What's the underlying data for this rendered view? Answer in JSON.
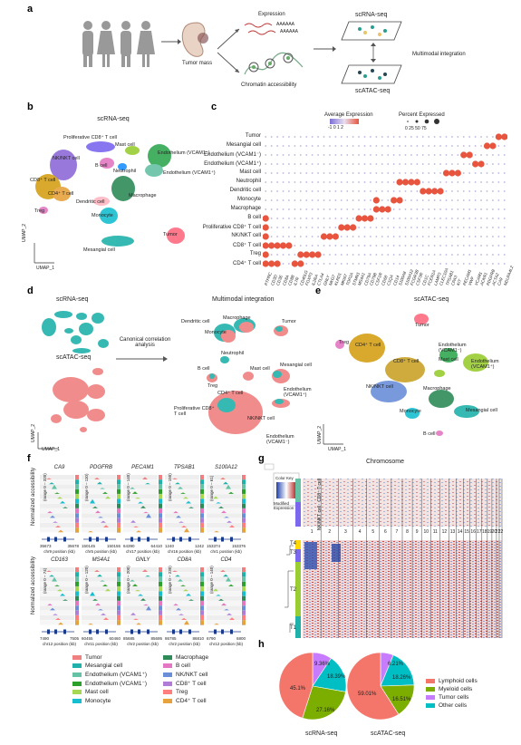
{
  "panels": {
    "a": "a",
    "b": "b",
    "c": "c",
    "d": "d",
    "e": "e",
    "f": "f",
    "g": "g",
    "h": "h"
  },
  "panel_a": {
    "expression": "Expression",
    "chromatin": "Chromatin accessibility",
    "tumor_mass": "Tumor mass",
    "scrna": "scRNA-seq",
    "scatac": "scATAC-seq",
    "integration": "Multimodal integration",
    "aaaa": "AAAAAA"
  },
  "panel_b": {
    "title": "scRNA-seq",
    "umap2": "UMAP_2",
    "umap1": "UMAP_1",
    "labels": {
      "prolif": "Proliferative CD8⁺ T cell",
      "mast": "Mast cell",
      "nk": "NK/NKT cell",
      "endo_minus": "Endothelium (VCAM1⁻)",
      "endo_plus": "Endothelium (VCAM1⁺)",
      "bcell": "B cell",
      "neutrophil": "Neutrophil",
      "cd8": "CD8⁺ T cell",
      "cd4": "CD4⁺ T cell",
      "macrophage": "Macrophage",
      "dendritic": "Dendritic cell",
      "treg": "Treg",
      "monocyte": "Monocyte",
      "tumor": "Tumor",
      "mesangial": "Mesangial cell"
    }
  },
  "panel_c": {
    "avg_title": "Average Expression",
    "avg_ticks": "-1 0 1 2",
    "pct_title": "Percent Expressed",
    "pct_ticks": "0  25 50 75",
    "rows": [
      "Tumor",
      "Mesangial cell",
      "Endothelium (VCAM1⁻)",
      "Endothelium (VCAM1⁺)",
      "Mast cell",
      "Neutrophil",
      "Dendritic cell",
      "Monocyte",
      "Macrophage",
      "B cell",
      "Proliferative CD8⁺ T cell",
      "NK/NKT cell",
      "CD8⁺ T cell",
      "Treg",
      "CD4⁺ T cell"
    ],
    "genes": [
      "PTPRC",
      "CD3D",
      "CD3E",
      "CD8A",
      "CD8B",
      "IL7R",
      "CD40LG",
      "FOXP3",
      "IL2RA",
      "CTLA4",
      "GNLY",
      "NKG7",
      "KLRD1",
      "MKI67",
      "TOP2A",
      "STMN1",
      "MS4A1",
      "CD79A",
      "CD79B",
      "CSF1R",
      "CD68",
      "C1QA",
      "CD14",
      "S100A8",
      "S100A12",
      "FCGR3B",
      "CSF3R",
      "CD1C",
      "FCER1A",
      "LAMP3",
      "CLEC10A",
      "TPSAB1",
      "CPA3",
      "KIT",
      "PECAM1",
      "VWF",
      "VCAM1",
      "ACKR1",
      "PDGFRB",
      "ACTA2",
      "CA9",
      "NDUFA4L2"
    ]
  },
  "panel_d": {
    "scrna": "scRNA-seq",
    "scatac": "scATAC-seq",
    "cca": "Canonical correlation\nanalysis",
    "title": "Multimodal integration",
    "umap2": "UMAP_2",
    "umap1": "UMAP_1",
    "labels": {
      "dendritic": "Dendritic cell",
      "macrophage": "Macrophage",
      "tumor": "Tumor",
      "monocyte": "Monocyte",
      "neutrophil": "Neutrophil",
      "bcell": "B cell",
      "mast": "Mast cell",
      "mesangial": "Mesangial cell",
      "treg": "Treg",
      "cd4": "CD4⁺ T cell",
      "prolif": "Proliferative CD8⁺\nT cell",
      "nk": "NK/NKT cell",
      "endo_plus": "Endothelium\n(VCAM1⁺)",
      "endo_minus": "Endothelium\n(VCAM1⁻)"
    }
  },
  "panel_e": {
    "title": "scATAC-seq",
    "umap2": "UMAP_2",
    "umap1": "UMAP_1",
    "labels": {
      "tumor": "Tumor",
      "treg": "Treg",
      "cd4": "CD4⁺ T cell",
      "endo_minus": "Endothelium\n(VCAM1⁻)",
      "endo_plus": "Endothelium\n(VCAM1⁺)",
      "cd8": "CD8⁺ T cell",
      "mast": "Mast cell",
      "nk": "NK/NKT cell",
      "macrophage": "Macrophage",
      "monocyte": "Monocyte",
      "mesangial": "Mesangial cell",
      "bcell": "B cell"
    }
  },
  "panel_f": {
    "ylabel": "Normalized accessibility",
    "top": [
      {
        "gene": "CA9",
        "range": "(range 0 – 320)",
        "x1": "35673",
        "x2": "35678",
        "chr": "chr9 position (kb)"
      },
      {
        "gene": "PDGFRB",
        "range": "(range 0 – 110)",
        "x1": "150145",
        "x2": "150155",
        "chr": "chr5 position (kb)"
      },
      {
        "gene": "PECAM1",
        "range": "(range 0 – 140)",
        "x1": "64390",
        "x2": "64410",
        "chr": "chr17 position (kb)"
      },
      {
        "gene": "TPSAB1",
        "range": "(range 0 – 150)",
        "x1": "1240",
        "x2": "1242",
        "chr": "chr16 position (kb)"
      },
      {
        "gene": "S100A12",
        "range": "(range 0 – 61)",
        "x1": "153374",
        "x2": "153376",
        "chr": "chr1 position (kb)"
      }
    ],
    "bottom": [
      {
        "gene": "CD163",
        "range": "(range 0 – 74)",
        "x1": "7490",
        "x2": "7505",
        "chr": "chr12 position (kb)"
      },
      {
        "gene": "MS4A1",
        "range": "(range 0 – 120)",
        "x1": "60455",
        "x2": "60460",
        "chr": "chr11 position (kb)"
      },
      {
        "gene": "GNLY",
        "range": "(range 0 – 200)",
        "x1": "85685",
        "x2": "85695",
        "chr": "chr2 position (kb)"
      },
      {
        "gene": "CD8A",
        "range": "(range 0 – 230)",
        "x1": "86785",
        "x2": "86810",
        "chr": "chr2 position (kb)"
      },
      {
        "gene": "CD4",
        "range": "(range 0 – 140)",
        "x1": "6790",
        "x2": "6800",
        "chr": "chr12 position (kb)"
      }
    ]
  },
  "legend_f": [
    {
      "name": "Tumor",
      "color": "#f08080"
    },
    {
      "name": "Macrophage",
      "color": "#2e8b57"
    },
    {
      "name": "Mesangial cell",
      "color": "#20b2aa"
    },
    {
      "name": "B cell",
      "color": "#e377c2"
    },
    {
      "name": "Endothelium (VCAM1⁺)",
      "color": "#66c2a5"
    },
    {
      "name": "NK/NKT cell",
      "color": "#6a8fd8"
    },
    {
      "name": "Endothelium (VCAM1⁻)",
      "color": "#2ca02c"
    },
    {
      "name": "CD8⁺ T cell",
      "color": "#b07cd8"
    },
    {
      "name": "Mast cell",
      "color": "#a6d854"
    },
    {
      "name": "Treg",
      "color": "#ff7f7f"
    },
    {
      "name": "Monocyte",
      "color": "#17becf"
    },
    {
      "name": "CD4⁺ T cell",
      "color": "#e6a23c"
    }
  ],
  "panel_g": {
    "title": "Chromosome",
    "cd8_label": "CD8⁺ T cell",
    "nk_label": "NK/NKT cell",
    "t1": "T1",
    "t2": "T2",
    "t3": "T3",
    "t4": "T4",
    "chromosomes": [
      "1",
      "2",
      "3",
      "4",
      "5",
      "6",
      "7",
      "8",
      "9",
      "10",
      "11",
      "12",
      "13",
      "14",
      "15",
      "16",
      "17",
      "18",
      "19",
      "20",
      "21",
      "22"
    ],
    "color_key": "Color Key",
    "modified": "Modified Expression"
  },
  "panel_h": {
    "rna_label": "scRNA-seq",
    "atac_label": "scATAC-seq",
    "legend": [
      {
        "name": "Lymphoid cells",
        "color": "#f4766a"
      },
      {
        "name": "Myeloid cells",
        "color": "#7cae00"
      },
      {
        "name": "Tumor cells",
        "color": "#c77cff"
      },
      {
        "name": "Other cells",
        "color": "#00bfc4"
      }
    ],
    "rna": {
      "lymphoid": "45.1%",
      "myeloid": "27.16%",
      "other": "18.39%",
      "tumor": "9.36%"
    },
    "atac": {
      "lymphoid": "59.01%",
      "myeloid": "16.51%",
      "other": "18.26%",
      "tumor": "6.21%"
    }
  },
  "chart_data": [
    {
      "type": "pie",
      "title": "scRNA-seq",
      "categories": [
        "Lymphoid cells",
        "Myeloid cells",
        "Other cells",
        "Tumor cells"
      ],
      "values": [
        45.1,
        27.16,
        18.39,
        9.36
      ],
      "colors": [
        "#f4766a",
        "#7cae00",
        "#00bfc4",
        "#c77cff"
      ]
    },
    {
      "type": "pie",
      "title": "scATAC-seq",
      "categories": [
        "Lymphoid cells",
        "Myeloid cells",
        "Other cells",
        "Tumor cells"
      ],
      "values": [
        59.01,
        16.51,
        18.26,
        6.21
      ],
      "colors": [
        "#f4766a",
        "#7cae00",
        "#00bfc4",
        "#c77cff"
      ]
    }
  ]
}
